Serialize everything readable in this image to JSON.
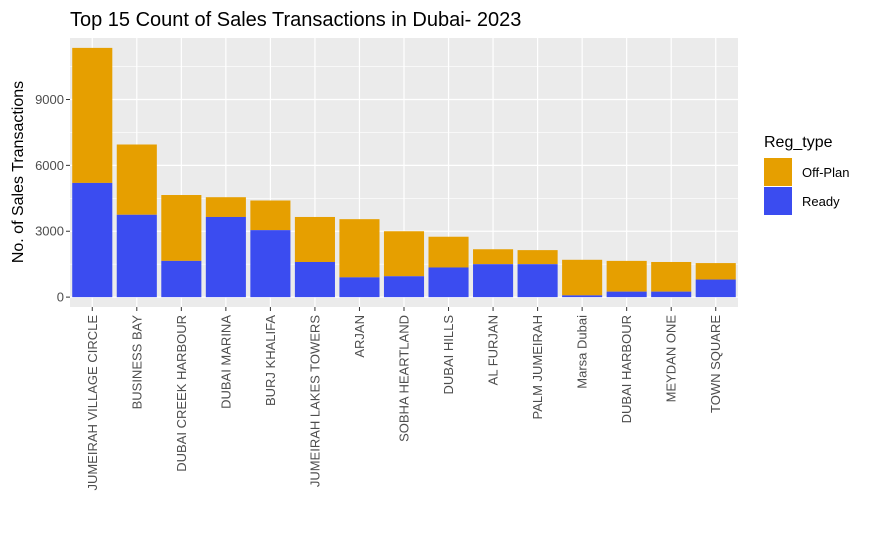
{
  "chart_data": {
    "type": "bar",
    "stacked": true,
    "title": "Top 15 Count of Sales Transactions in Dubai- 2023",
    "xlabel": "",
    "ylabel": "No. of Sales Transactions",
    "ylim": [
      -450,
      11800
    ],
    "yticks": [
      0,
      3000,
      6000,
      9000
    ],
    "ytick_labels": [
      "0",
      "3000",
      "6000",
      "9000"
    ],
    "grid": true,
    "legend": {
      "title": "Reg_type",
      "position": "right"
    },
    "categories": [
      "JUMEIRAH VILLAGE CIRCLE",
      "BUSINESS BAY",
      "DUBAI CREEK HARBOUR",
      "DUBAI MARINA",
      "BURJ KHALIFA",
      "JUMEIRAH LAKES TOWERS",
      "ARJAN",
      "SOBHA HEARTLAND",
      "DUBAI HILLS",
      "AL FURJAN",
      "PALM JUMEIRAH",
      "Marsa Dubai",
      "DUBAI HARBOUR",
      "MEYDAN ONE",
      "TOWN SQUARE"
    ],
    "series": [
      {
        "name": "Ready",
        "color": "#3B4CF0",
        "values": [
          5200,
          3750,
          1650,
          3650,
          3050,
          1600,
          900,
          950,
          1350,
          1500,
          1500,
          80,
          250,
          250,
          800
        ]
      },
      {
        "name": "Off-Plan",
        "color": "#E69F00",
        "values": [
          6150,
          3200,
          3000,
          900,
          1350,
          2050,
          2650,
          2050,
          1400,
          680,
          640,
          1620,
          1400,
          1350,
          750
        ]
      }
    ]
  }
}
